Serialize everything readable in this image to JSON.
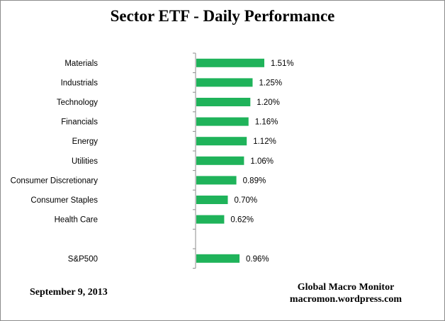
{
  "chart_data": {
    "type": "bar",
    "orientation": "horizontal",
    "title": "Sector ETF - Daily Performance",
    "categories": [
      "Materials",
      "Industrials",
      "Technology",
      "Financials",
      "Energy",
      "Utilities",
      "Consumer Discretionary",
      "Consumer Staples",
      "Health Care",
      "",
      "S&P500"
    ],
    "values": [
      1.51,
      1.25,
      1.2,
      1.16,
      1.12,
      1.06,
      0.89,
      0.7,
      0.62,
      null,
      0.96
    ],
    "value_labels": [
      "1.51%",
      "1.25%",
      "1.20%",
      "1.16%",
      "1.12%",
      "1.06%",
      "0.89%",
      "0.70%",
      "0.62%",
      "",
      "0.96%"
    ],
    "xlim": [
      0,
      2.0
    ],
    "grid": false,
    "bar_color": "#1fb35a",
    "axis_color": "#8c8c8c"
  },
  "footer": {
    "date": "September 9, 2013",
    "source_name": "Global Macro Monitor",
    "source_url": "macromon.wordpress.com"
  }
}
